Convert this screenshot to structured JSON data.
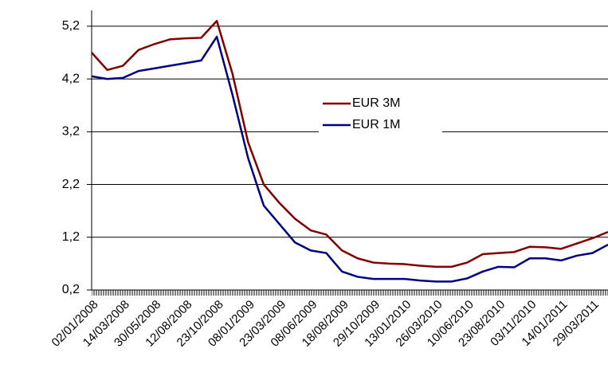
{
  "chart_data": {
    "type": "line",
    "categories": [
      "02/01/2008",
      null,
      "14/03/2008",
      null,
      "30/05/2008",
      null,
      "12/08/2008",
      null,
      "23/10/2008",
      null,
      "08/01/2009",
      null,
      "23/03/2009",
      null,
      "08/06/2009",
      null,
      "18/08/2009",
      null,
      "29/10/2009",
      null,
      "13/01/2010",
      null,
      "26/03/2010",
      null,
      "10/06/2010",
      null,
      "23/08/2010",
      null,
      "03/11/2010",
      null,
      "14/01/2011",
      null,
      "29/03/2011",
      null
    ],
    "series": [
      {
        "name": "EUR 3M",
        "color": "#800000",
        "values": [
          4.7,
          4.37,
          4.45,
          4.75,
          4.86,
          4.95,
          4.97,
          4.98,
          5.3,
          4.3,
          3.0,
          2.2,
          1.85,
          1.55,
          1.33,
          1.25,
          0.95,
          0.8,
          0.72,
          0.7,
          0.69,
          0.66,
          0.64,
          0.64,
          0.72,
          0.88,
          0.9,
          0.92,
          1.02,
          1.01,
          0.98,
          1.08,
          1.18,
          1.3
        ]
      },
      {
        "name": "EUR 1M",
        "color": "#000080",
        "values": [
          4.25,
          4.2,
          4.22,
          4.35,
          4.4,
          4.45,
          4.5,
          4.55,
          5.0,
          3.9,
          2.7,
          1.8,
          1.45,
          1.1,
          0.95,
          0.9,
          0.55,
          0.45,
          0.41,
          0.41,
          0.41,
          0.38,
          0.36,
          0.36,
          0.42,
          0.55,
          0.64,
          0.63,
          0.8,
          0.8,
          0.76,
          0.85,
          0.9,
          1.06
        ]
      }
    ],
    "ylim": [
      0.2,
      5.5
    ],
    "yticks": [
      {
        "value": 0.2,
        "label": "0,2"
      },
      {
        "value": 1.2,
        "label": "1,2"
      },
      {
        "value": 2.2,
        "label": "2,2"
      },
      {
        "value": 3.2,
        "label": "3,2"
      },
      {
        "value": 4.2,
        "label": "4,2"
      },
      {
        "value": 5.2,
        "label": "5,2"
      }
    ],
    "grid": true
  }
}
